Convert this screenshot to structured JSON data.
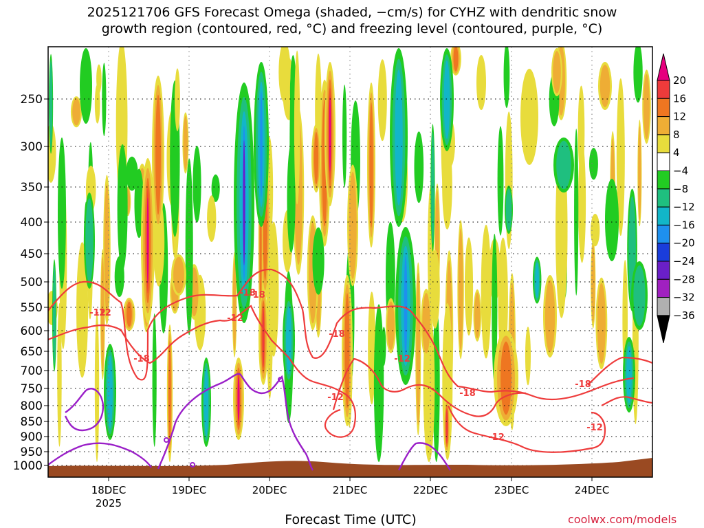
{
  "title_line1": "2025121706 GFS Forecast Omega (shaded, −cm/s) for CYHZ with dendritic snow",
  "title_line2": "growth region (contoured, red, °C) and freezing level (contoured, purple, °C)",
  "xaxis_title": "Forecast Time (UTC)",
  "credit": "coolwx.com/models",
  "chart_data": {
    "type": "heatmap",
    "title": "2025121706 GFS Forecast Omega (shaded, −cm/s) for CYHZ with dendritic snow growth region (contoured, red, °C) and freezing level (contoured, purple, °C)",
    "xlabel": "Forecast Time (UTC)",
    "ylabel": "",
    "x_tick_labels": [
      "18DEC",
      "19DEC",
      "20DEC",
      "21DEC",
      "22DEC",
      "23DEC",
      "24DEC"
    ],
    "x_year_label": "2025",
    "y_ticks_hpa": [
      250,
      300,
      350,
      400,
      450,
      500,
      550,
      600,
      650,
      700,
      750,
      800,
      850,
      900,
      950,
      1000
    ],
    "y_range_hpa": [
      200,
      1000
    ],
    "grid": true,
    "colorbar": {
      "tick_labels": [
        "20",
        "16",
        "12",
        "8",
        "4",
        "−4",
        "−8",
        "−12",
        "−16",
        "−20",
        "−24",
        "−28",
        "−32",
        "−36"
      ],
      "bins": [
        {
          "range": "> 20",
          "color": "#e6007e"
        },
        {
          "range": "16 to 20",
          "color": "#ee3b3b"
        },
        {
          "range": "12 to 16",
          "color": "#ee7621"
        },
        {
          "range": "8 to 12",
          "color": "#eead35"
        },
        {
          "range": "4 to 8",
          "color": "#e8dc3c"
        },
        {
          "range": "-4 to 4",
          "color": "#ffffff"
        },
        {
          "range": "-8 to -4",
          "color": "#22cc22"
        },
        {
          "range": "-12 to -8",
          "color": "#1fbf7f"
        },
        {
          "range": "-16 to -12",
          "color": "#12b6c8"
        },
        {
          "range": "-20 to -16",
          "color": "#1e90ee"
        },
        {
          "range": "-24 to -20",
          "color": "#1a3ddb"
        },
        {
          "range": "-28 to -24",
          "color": "#6a1fc8"
        },
        {
          "range": "-32 to -28",
          "color": "#a020c0"
        },
        {
          "range": "-36 to -32",
          "color": "#b0b0b0"
        },
        {
          "range": "< -36",
          "color": "#000000"
        }
      ]
    },
    "red_contour_labels": [
      "-12",
      "-18",
      "-12",
      "-18",
      "-12",
      "-18",
      "-12",
      "-12",
      "-18",
      "-12",
      "-18",
      "-12",
      "-18"
    ],
    "terrain_color": "#9a4a22",
    "purple_color": "#9a1fc8",
    "red_color": "#ee3b3b"
  }
}
